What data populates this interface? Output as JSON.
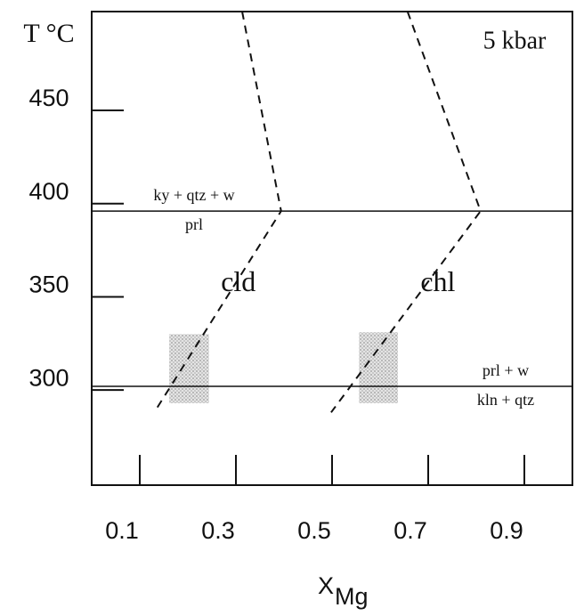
{
  "chart_data": {
    "type": "line",
    "ylabel": "T °C",
    "xlabel": "X",
    "xlabel_sub": "Mg",
    "annotation": "5 kbar",
    "xlim": [
      0,
      1
    ],
    "ylim": [
      249,
      503
    ],
    "xticks": [
      0.1,
      0.3,
      0.5,
      0.7,
      0.9
    ],
    "yticks": [
      300,
      350,
      400,
      450
    ],
    "series": [
      {
        "name": "cld",
        "color": "#111",
        "x": [
          0.313,
          0.394,
          0.13
        ],
        "values": [
          503,
          396,
          288
        ]
      },
      {
        "name": "chl",
        "color": "#111",
        "x": [
          0.657,
          0.809,
          0.498
        ],
        "values": [
          503,
          396,
          288
        ]
      }
    ],
    "reactions": [
      {
        "upper": "ky + qtz + w",
        "lower": "prl",
        "value": 396
      },
      {
        "upper": "prl + w",
        "lower": "kln + qtz",
        "value": 302
      }
    ],
    "shaded": [
      {
        "x": [
          0.161,
          0.244
        ],
        "y": [
          293,
          330
        ]
      },
      {
        "x": [
          0.556,
          0.637
        ],
        "y": [
          293,
          331
        ]
      }
    ]
  }
}
